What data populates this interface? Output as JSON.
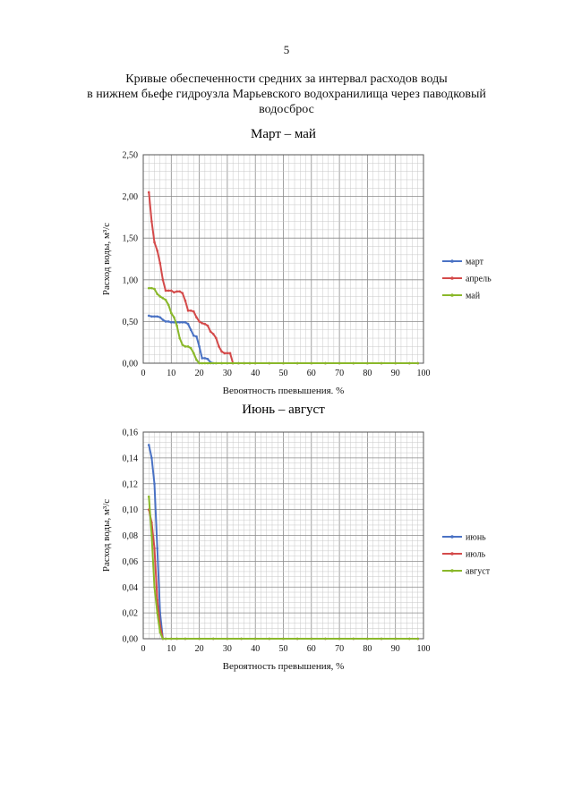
{
  "page": {
    "number": "5",
    "title_lines": [
      "Кривые обеспеченности средних за интервал расходов воды",
      "в нижнем бьефе гидроузла Марьевского водохранилища через паводковый",
      "водосброс"
    ]
  },
  "chart_data": [
    {
      "type": "line",
      "title": "Март – май",
      "xlabel": "Вероятность превышения, %",
      "ylabel": "Расход воды, м³/с",
      "xlim": [
        0,
        100
      ],
      "ylim": [
        0,
        2.5
      ],
      "xticks": [
        0,
        10,
        20,
        30,
        40,
        50,
        60,
        70,
        80,
        90,
        100
      ],
      "yticks": [
        0,
        0.5,
        1.0,
        1.5,
        2.0,
        2.5
      ],
      "ytick_labels": [
        "0,00",
        "0,50",
        "1,00",
        "1,50",
        "2,00",
        "2,50"
      ],
      "legend_position": "right",
      "series": [
        {
          "name": "март",
          "color": "#4a72c4",
          "x": [
            2,
            3,
            4,
            5,
            6,
            7,
            8,
            9,
            10,
            11,
            12,
            13,
            14,
            15,
            16,
            17,
            18,
            19,
            20,
            21,
            22,
            23,
            24,
            25,
            26,
            28,
            30,
            32,
            34,
            36,
            38,
            40,
            45,
            50,
            55,
            60,
            65,
            70,
            75,
            80,
            85,
            90,
            95,
            98
          ],
          "values": [
            0.57,
            0.56,
            0.56,
            0.56,
            0.55,
            0.52,
            0.5,
            0.5,
            0.49,
            0.49,
            0.49,
            0.49,
            0.49,
            0.49,
            0.47,
            0.4,
            0.33,
            0.32,
            0.2,
            0.06,
            0.06,
            0.05,
            0.01,
            0,
            0,
            0,
            0,
            0,
            0,
            0,
            0,
            0,
            0,
            0,
            0,
            0,
            0,
            0,
            0,
            0,
            0,
            0,
            0,
            0
          ]
        },
        {
          "name": "апрель",
          "color": "#d44a4a",
          "x": [
            2,
            3,
            4,
            5,
            6,
            7,
            8,
            9,
            10,
            11,
            12,
            13,
            14,
            15,
            16,
            17,
            18,
            19,
            20,
            21,
            22,
            23,
            24,
            25,
            26,
            27,
            28,
            29,
            30,
            31,
            32,
            34,
            36,
            38,
            40,
            45,
            50,
            55,
            60,
            65,
            70,
            75,
            80,
            85,
            90,
            95,
            98
          ],
          "values": [
            2.05,
            1.7,
            1.45,
            1.35,
            1.2,
            1.0,
            0.87,
            0.87,
            0.87,
            0.85,
            0.86,
            0.86,
            0.84,
            0.75,
            0.63,
            0.63,
            0.62,
            0.55,
            0.5,
            0.48,
            0.47,
            0.45,
            0.38,
            0.35,
            0.3,
            0.2,
            0.14,
            0.12,
            0.12,
            0.12,
            0,
            0,
            0,
            0,
            0,
            0,
            0,
            0,
            0,
            0,
            0,
            0,
            0,
            0,
            0,
            0,
            0
          ]
        },
        {
          "name": "май",
          "color": "#8ab82a",
          "x": [
            2,
            3,
            4,
            5,
            6,
            7,
            8,
            9,
            10,
            11,
            12,
            13,
            14,
            15,
            16,
            17,
            18,
            19,
            20,
            21,
            22,
            23,
            24,
            26,
            28,
            30,
            32,
            34,
            36,
            38,
            40,
            45,
            50,
            55,
            60,
            65,
            70,
            75,
            80,
            85,
            90,
            95,
            98
          ],
          "values": [
            0.9,
            0.9,
            0.89,
            0.83,
            0.8,
            0.78,
            0.76,
            0.7,
            0.6,
            0.55,
            0.45,
            0.3,
            0.22,
            0.2,
            0.2,
            0.18,
            0.12,
            0.04,
            0.0,
            0,
            0,
            0,
            0,
            0,
            0,
            0,
            0,
            0,
            0,
            0,
            0,
            0,
            0,
            0,
            0,
            0,
            0,
            0,
            0,
            0,
            0,
            0,
            0
          ]
        }
      ]
    },
    {
      "type": "line",
      "title": "Июнь – август",
      "xlabel": "Вероятность превышения, %",
      "ylabel": "Расход воды, м³/с",
      "xlim": [
        0,
        100
      ],
      "ylim": [
        0,
        0.16
      ],
      "xticks": [
        0,
        10,
        20,
        30,
        40,
        50,
        60,
        70,
        80,
        90,
        100
      ],
      "yticks": [
        0,
        0.02,
        0.04,
        0.06,
        0.08,
        0.1,
        0.12,
        0.14,
        0.16
      ],
      "ytick_labels": [
        "0,00",
        "0,02",
        "0,04",
        "0,06",
        "0,08",
        "0,10",
        "0,12",
        "0,14",
        "0,16"
      ],
      "legend_position": "right",
      "series": [
        {
          "name": "июнь",
          "color": "#4a72c4",
          "x": [
            2,
            3,
            4,
            5,
            6,
            7,
            8,
            10,
            12,
            15,
            20,
            25,
            30,
            35,
            40,
            45,
            50,
            55,
            60,
            65,
            70,
            75,
            80,
            85,
            90,
            95,
            98
          ],
          "values": [
            0.15,
            0.14,
            0.12,
            0.07,
            0.02,
            0.0,
            0,
            0,
            0,
            0,
            0,
            0,
            0,
            0,
            0,
            0,
            0,
            0,
            0,
            0,
            0,
            0,
            0,
            0,
            0,
            0,
            0
          ]
        },
        {
          "name": "июль",
          "color": "#d44a4a",
          "x": [
            2,
            3,
            4,
            5,
            6,
            7,
            8,
            10,
            12,
            15,
            20,
            25,
            30,
            35,
            40,
            45,
            50,
            55,
            60,
            65,
            70,
            75,
            80,
            85,
            90,
            95,
            98
          ],
          "values": [
            0.1,
            0.09,
            0.07,
            0.03,
            0.01,
            0.0,
            0,
            0,
            0,
            0,
            0,
            0,
            0,
            0,
            0,
            0,
            0,
            0,
            0,
            0,
            0,
            0,
            0,
            0,
            0,
            0,
            0
          ]
        },
        {
          "name": "август",
          "color": "#8ab82a",
          "x": [
            2,
            3,
            4,
            5,
            6,
            7,
            8,
            10,
            12,
            15,
            20,
            25,
            30,
            35,
            40,
            45,
            50,
            55,
            60,
            65,
            70,
            75,
            80,
            85,
            90,
            95,
            98
          ],
          "values": [
            0.11,
            0.08,
            0.04,
            0.02,
            0.005,
            0.0,
            0,
            0,
            0,
            0,
            0,
            0,
            0,
            0,
            0,
            0,
            0,
            0,
            0,
            0,
            0,
            0,
            0,
            0,
            0,
            0,
            0
          ]
        }
      ]
    }
  ]
}
